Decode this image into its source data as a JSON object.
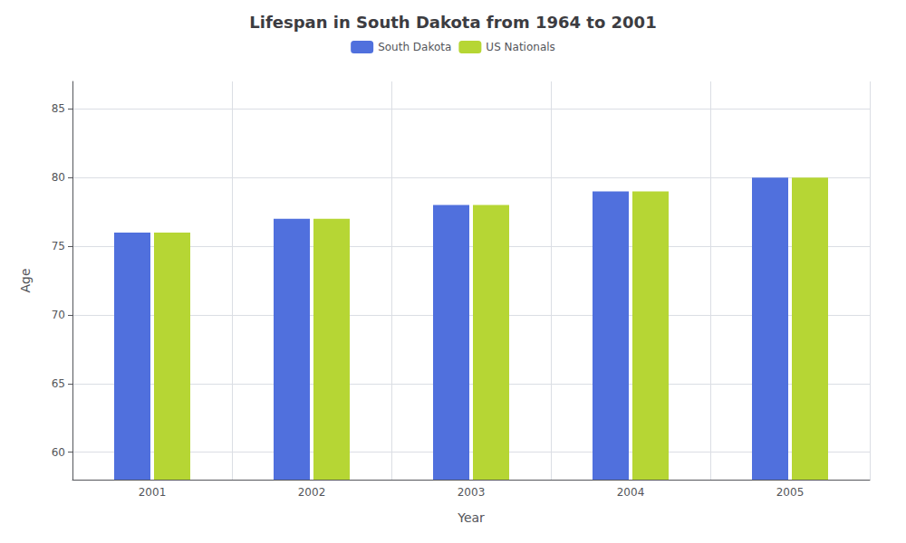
{
  "chart_data": {
    "type": "bar",
    "title": "Lifespan in South Dakota from 1964 to 2001",
    "xlabel": "Year",
    "ylabel": "Age",
    "categories": [
      "2001",
      "2002",
      "2003",
      "2004",
      "2005"
    ],
    "series": [
      {
        "name": "South Dakota",
        "values": [
          76,
          77,
          78,
          79,
          80
        ]
      },
      {
        "name": "US Nationals",
        "values": [
          76,
          77,
          78,
          79,
          80
        ]
      }
    ],
    "ylim": [
      58,
      87
    ],
    "yticks": [
      60,
      65,
      70,
      75,
      80,
      85
    ],
    "grid": true,
    "legend": "top"
  }
}
